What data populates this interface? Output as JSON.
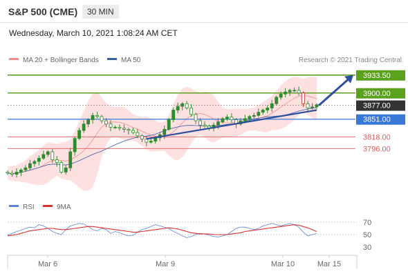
{
  "header": {
    "title": "S&P 500 (CME)",
    "timeframe": "30 MIN",
    "datetime": "Wednesday, March 10, 2021 1:08:24 AM CET"
  },
  "colors": {
    "bollinger": "#f28b8b",
    "bollinger_fill": "#fde1e1",
    "ma50": "#3a5da8",
    "resistance": "#5ca11e",
    "current": "#333333",
    "pivot": "#3a78d8",
    "support": "#e05a5a",
    "candle": "#2e8b2e",
    "candle_down": "#c62828",
    "trend": "#2c4f9e",
    "rsi": "#5b84d6",
    "rsi_ma": "#d93030"
  },
  "chart_data": [
    {
      "type": "candlestick",
      "instrument": "S&P 500 (CME)",
      "timeframe": "30 MIN",
      "legend": [
        {
          "label": "MA 20 + Bollinger Bands",
          "color": "#f28b8b"
        },
        {
          "label": "MA 50",
          "color": "#3a5da8"
        }
      ],
      "credit": "Research © 2021 Trading Central",
      "x_ticks": [
        "Mar 6",
        "Mar 9",
        "Mar 10",
        "Mar 15"
      ],
      "ylim": [
        3710,
        3950
      ],
      "levels": [
        {
          "value": 3933.5,
          "label": "3933.50",
          "kind": "resistance"
        },
        {
          "value": 3900.0,
          "label": "3900.00",
          "kind": "resistance"
        },
        {
          "value": 3877.0,
          "label": "3877.00",
          "kind": "current"
        },
        {
          "value": 3851.0,
          "label": "3851.00",
          "kind": "pivot"
        },
        {
          "value": 3818.0,
          "label": "3818.00",
          "kind": "support"
        },
        {
          "value": 3796.0,
          "label": "3796.00",
          "kind": "support"
        }
      ],
      "close_series": [
        3750,
        3748,
        3752,
        3756,
        3760,
        3768,
        3772,
        3778,
        3785,
        3790,
        3775,
        3770,
        3752,
        3760,
        3790,
        3815,
        3830,
        3842,
        3850,
        3858,
        3856,
        3848,
        3842,
        3836,
        3836,
        3834,
        3832,
        3830,
        3826,
        3820,
        3814,
        3808,
        3810,
        3816,
        3822,
        3832,
        3850,
        3868,
        3875,
        3880,
        3872,
        3860,
        3848,
        3840,
        3838,
        3834,
        3840,
        3846,
        3852,
        3855,
        3850,
        3842,
        3848,
        3852,
        3856,
        3858,
        3864,
        3868,
        3872,
        3880,
        3892,
        3898,
        3902,
        3905,
        3905,
        3900,
        3880,
        3872,
        3874,
        3878
      ],
      "trendline": [
        [
          3814,
          3868
        ]
      ],
      "forecast_target": 3933.5
    },
    {
      "type": "line",
      "legend": [
        {
          "label": "RSI",
          "color": "#5b84d6"
        },
        {
          "label": "9MA",
          "color": "#d93030"
        }
      ],
      "ylim": [
        30,
        70
      ],
      "y_ticks": [
        "70",
        "50",
        "30"
      ],
      "series": [
        {
          "name": "RSI",
          "values": [
            49,
            52,
            55,
            57,
            60,
            62,
            61,
            66,
            64,
            60,
            55,
            52,
            50,
            58,
            64,
            66,
            68,
            67,
            63,
            58,
            56,
            60,
            58,
            52,
            55,
            53,
            50,
            48,
            49,
            54,
            58,
            60,
            63,
            66,
            64,
            62,
            60,
            55,
            52,
            48,
            45,
            47,
            50,
            52,
            51,
            49,
            47,
            46,
            48,
            50,
            55,
            60,
            62,
            62,
            60,
            58,
            60,
            64,
            66,
            68,
            66,
            64,
            66,
            68,
            66,
            62,
            54,
            48,
            50,
            52
          ]
        },
        {
          "name": "9MA",
          "values": [
            48,
            49,
            50,
            52,
            54,
            56,
            57,
            58,
            59,
            60,
            60,
            59,
            58,
            58,
            59,
            60,
            61,
            62,
            63,
            63,
            62,
            61,
            60,
            59,
            58,
            57,
            56,
            55,
            54,
            54,
            55,
            56,
            57,
            58,
            59,
            60,
            61,
            60,
            59,
            57,
            55,
            53,
            52,
            51,
            51,
            51,
            50,
            50,
            50,
            50,
            51,
            52,
            53,
            55,
            56,
            57,
            58,
            59,
            60,
            61,
            62,
            63,
            64,
            65,
            66,
            65,
            63,
            61,
            58,
            55
          ]
        }
      ]
    }
  ]
}
